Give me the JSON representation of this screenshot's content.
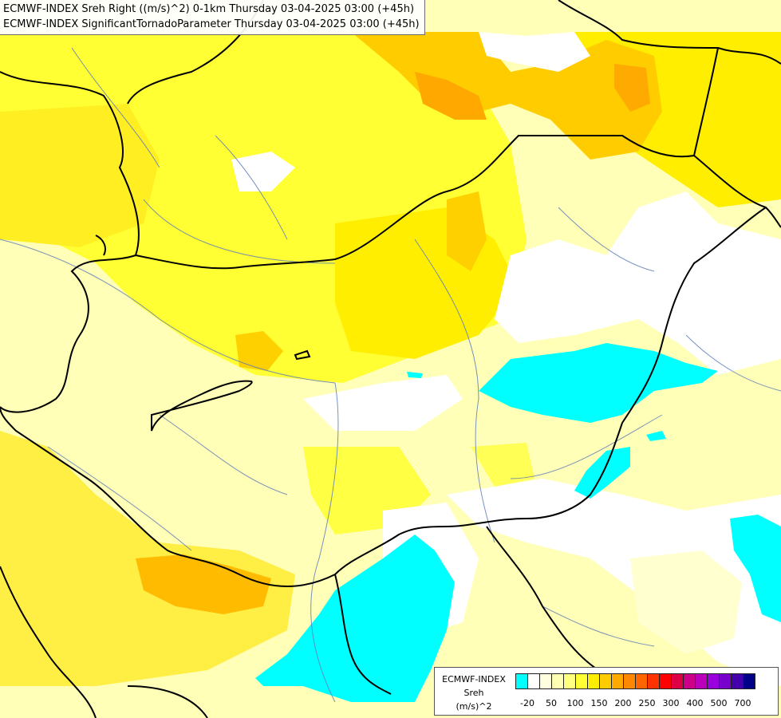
{
  "titles": {
    "line1": "ECMWF-INDEX Sreh Right ((m/s)^2) 0-1km Thursday 03-04-2025 03:00 (+45h)",
    "line2": "ECMWF-INDEX SignificantTornadoParameter Thursday 03-04-2025 03:00 (+45h)"
  },
  "legend": {
    "model": "ECMWF-INDEX",
    "parameter": "Sreh",
    "unit": "(m/s)^2",
    "colors": [
      "#00ffff",
      "#ffffff",
      "#ffffe0",
      "#ffffb3",
      "#ffff80",
      "#ffff33",
      "#ffee00",
      "#ffcc00",
      "#ffaa00",
      "#ff8800",
      "#ff6600",
      "#ff3300",
      "#ff0000",
      "#dd0044",
      "#cc0088",
      "#bb00bb",
      "#9900dd",
      "#7700cc",
      "#4400aa",
      "#000088"
    ],
    "tick_labels": [
      "-20",
      "50",
      "100",
      "150",
      "200",
      "250",
      "300",
      "400",
      "500",
      "700"
    ]
  },
  "palette": {
    "cyan": "#00ffff",
    "white": "#ffffff",
    "pale": "#ffffc0",
    "light": "#ffff99",
    "yellow": "#ffff00",
    "gold": "#ffdd00",
    "orange": "#ffb400",
    "deep_orange": "#ff9a00"
  }
}
